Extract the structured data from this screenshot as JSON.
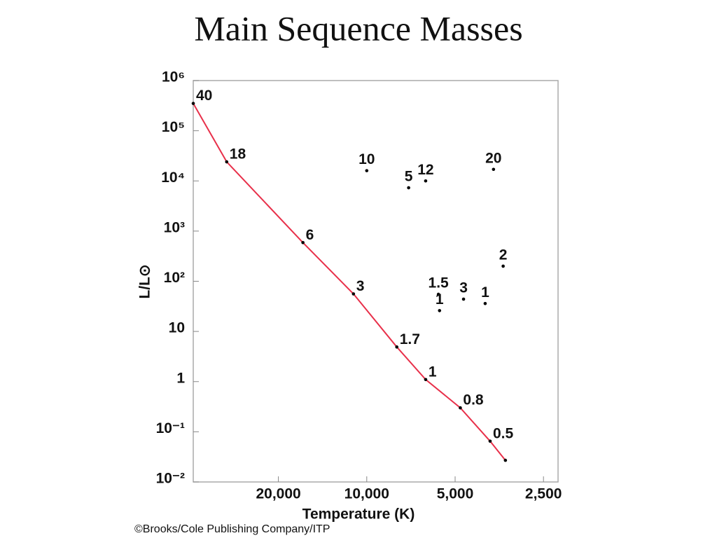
{
  "chart_data": {
    "type": "scatter",
    "title": "Main Sequence Masses",
    "xlabel": "Temperature (K)",
    "ylabel": "L/L⊙",
    "xscale": "log",
    "yscale": "log",
    "xlim": [
      39000,
      2230
    ],
    "ylim": [
      0.01,
      1000000
    ],
    "xticks": [
      {
        "value": 20000,
        "label": "20,000"
      },
      {
        "value": 10000,
        "label": "10,000"
      },
      {
        "value": 5000,
        "label": "5,000"
      },
      {
        "value": 2500,
        "label": "2,500"
      }
    ],
    "yticks": [
      {
        "value": 0.01,
        "label": "10⁻²"
      },
      {
        "value": 0.1,
        "label": "10⁻¹"
      },
      1,
      10,
      {
        "value": 100,
        "label": "10²"
      },
      {
        "value": 1000,
        "label": "10³"
      },
      {
        "value": 10000,
        "label": "10⁴"
      },
      {
        "value": 100000,
        "label": "10⁵"
      },
      {
        "value": 1000000,
        "label": "10⁶"
      }
    ],
    "series": [
      {
        "color": "#e8304a",
        "line": true,
        "x": [
          39000,
          30000,
          16500,
          11100,
          7900,
          6300,
          4800,
          3800,
          3370
        ],
        "values": [
          350000,
          24000,
          590,
          56,
          4.9,
          1.1,
          0.3,
          0.065,
          0.027
        ],
        "labels": [
          "40",
          "18",
          "6",
          "3",
          "1.7",
          "1",
          "0.8",
          "0.5",
          null
        ]
      },
      {
        "color": "#000000",
        "line": false,
        "x": [
          10000,
          7200,
          6300,
          3700,
          3430,
          5700,
          4680,
          3950,
          5650
        ],
        "values": [
          16000,
          7300,
          10000,
          17000,
          200,
          55,
          44,
          36,
          26
        ],
        "labels": [
          "10",
          "5",
          "12",
          "20",
          "2",
          "1.5",
          "3",
          "1",
          "1"
        ]
      }
    ]
  },
  "footer": "©Brooks/Cole Publishing Company/ITP"
}
